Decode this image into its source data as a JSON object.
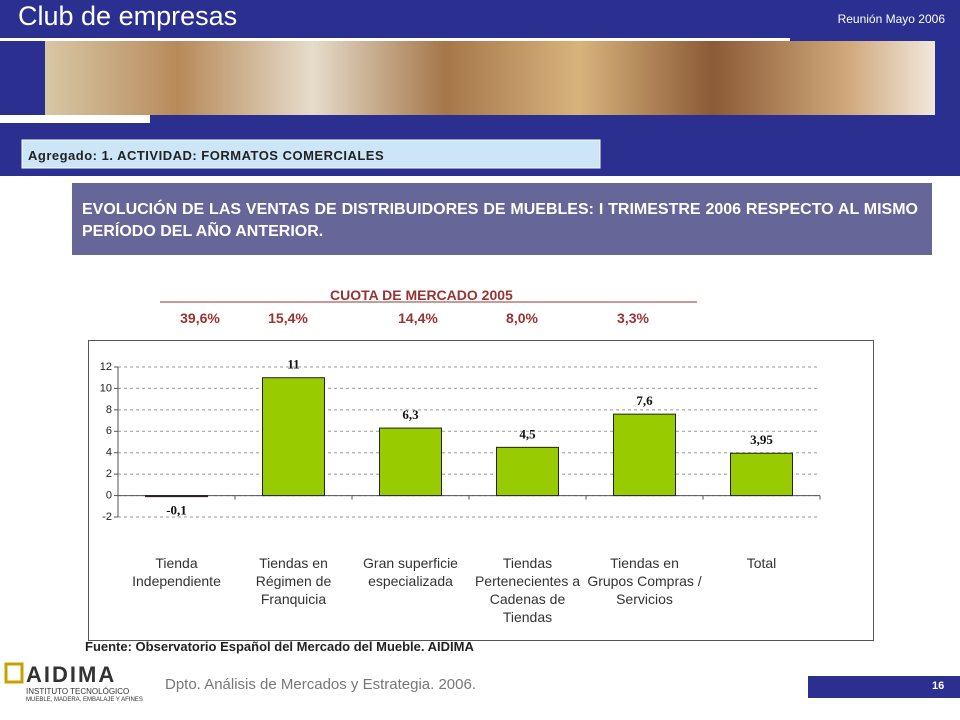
{
  "header": {
    "title": "Club de empresas",
    "meeting": "Reunión Mayo 2006",
    "section": "Agregado: 1. ACTIVIDAD: FORMATOS COMERCIALES"
  },
  "slide_title": "EVOLUCIÓN DE LAS VENTAS DE DISTRIBUIDORES DE MUEBLES: I TRIMESTRE 2006 RESPECTO AL MISMO PERÍODO DEL AÑO ANTERIOR.",
  "market_share": {
    "title": "CUOTA DE MERCADO 2005",
    "values": [
      "39,6%",
      "15,4%",
      "14,4%",
      "8,0%",
      "3,3%"
    ]
  },
  "chart_data": {
    "type": "bar",
    "categories": [
      "Tienda Independiente",
      "Tiendas en Régimen de Franquicia",
      "Gran superficie especializada",
      "Tiendas Pertenecientes a Cadenas de Tiendas",
      "Tiendas en Grupos Compras / Servicios",
      "Total"
    ],
    "values": [
      -0.1,
      11,
      6.3,
      4.5,
      7.6,
      3.95
    ],
    "value_labels": [
      "-0,1",
      "11",
      "6,3",
      "4,5",
      "7,6",
      "3,95"
    ],
    "color": "#99cc00",
    "negative_color": "#b22222",
    "ylim": [
      -2,
      12
    ],
    "yticks": [
      -2,
      0,
      2,
      4,
      6,
      8,
      10,
      12
    ],
    "grid": true
  },
  "source": "Fuente: Observatorio Español del Mercado del Mueble. AIDIMA",
  "footer": {
    "logo": "AIDIMA",
    "logo_sub1": "INSTITUTO TECNOLÓGICO",
    "logo_sub2": "MUEBLE, MADERA, EMBALAJE Y AFINES",
    "department": "Dpto. Análisis de Mercados y Estrategia. 2006.",
    "page": "16"
  }
}
